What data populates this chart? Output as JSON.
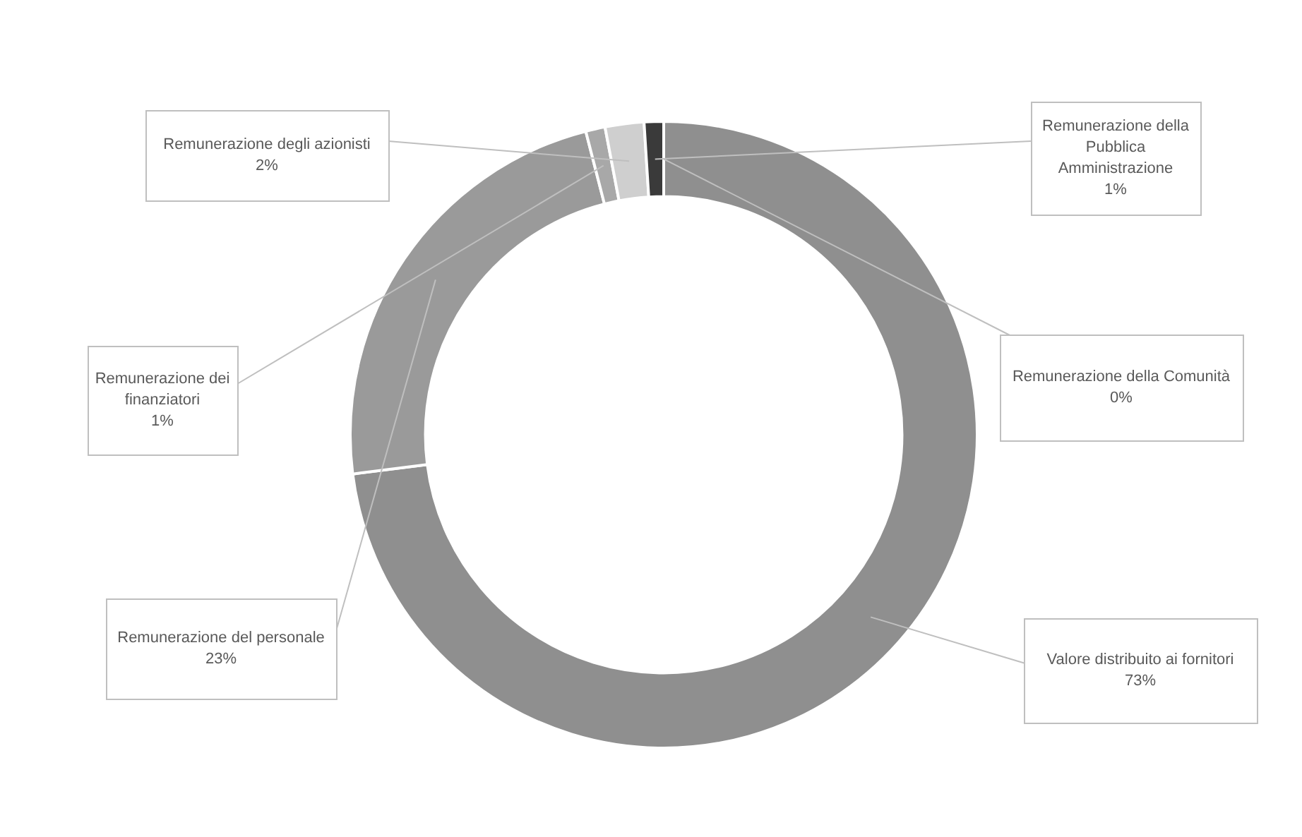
{
  "chart_data": {
    "type": "donut",
    "categories": [
      "Valore distribuito ai fornitori",
      "Remunerazione del personale",
      "Remunerazione dei finanziatori",
      "Remunerazione degli azionisti",
      "Remunerazione della Pubblica Amministrazione",
      "Remunerazione della Comunità"
    ],
    "values": [
      73,
      23,
      1,
      2,
      1,
      0
    ],
    "value_labels": [
      "73%",
      "23%",
      "1%",
      "2%",
      "1%",
      "0%"
    ],
    "colors": [
      "#8f8f8f",
      "#9a9a9a",
      "#a8a8a8",
      "#cfcfcf",
      "#3a3a3a",
      "#5a5a5a"
    ],
    "legend": false
  }
}
